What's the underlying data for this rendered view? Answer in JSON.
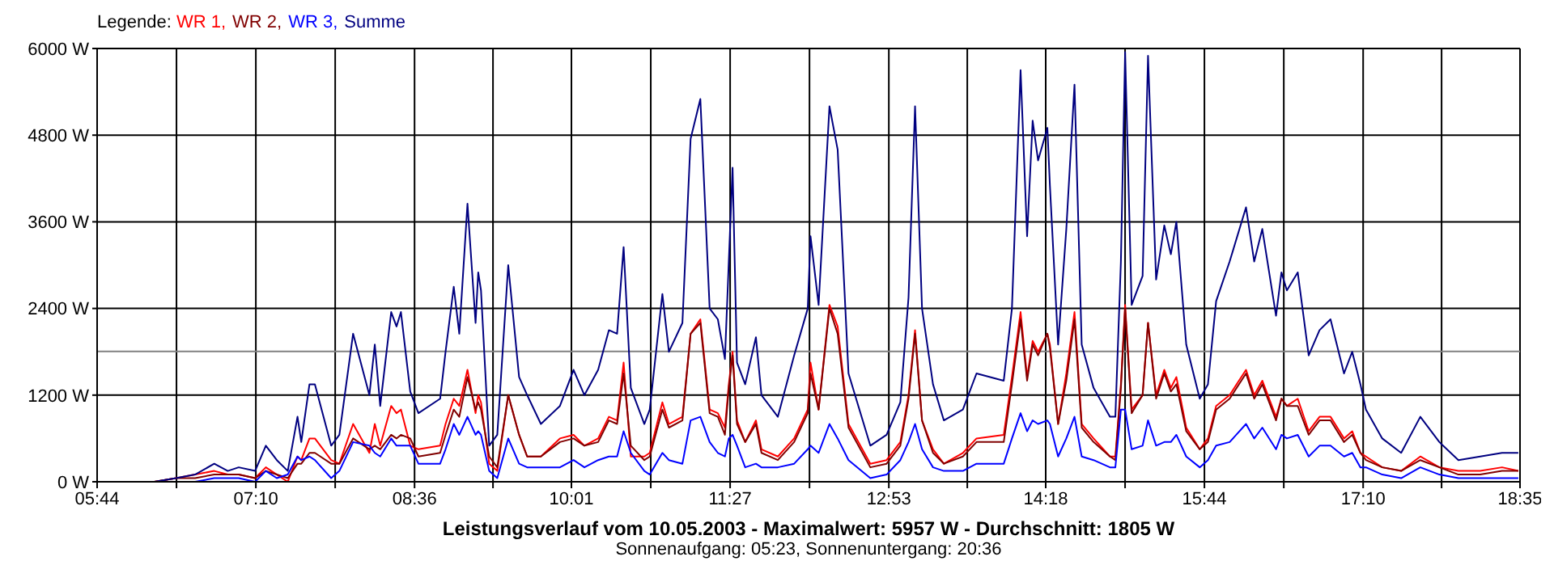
{
  "chart_data": {
    "type": "line",
    "title": "Leistungsverlauf vom 10.05.2003 - Maximalwert: 5957 W - Durchschnitt: 1805 W",
    "subtitle": "Sonnenaufgang: 05:23, Sonnenuntergang: 20:36",
    "legend_title": "Legende:",
    "legend": "top left",
    "grid": true,
    "x": [
      6.25,
      6.446,
      6.618,
      6.791,
      6.913,
      7.012,
      7.16,
      7.257,
      7.356,
      7.455,
      7.543,
      7.577,
      7.651,
      7.7,
      7.847,
      7.921,
      8.045,
      8.192,
      8.241,
      8.29,
      8.389,
      8.437,
      8.477,
      8.561,
      8.635,
      8.831,
      8.88,
      8.954,
      9.004,
      9.078,
      9.151,
      9.175,
      9.2,
      9.274,
      9.347,
      9.446,
      9.544,
      9.617,
      9.741,
      9.913,
      10.036,
      10.134,
      10.258,
      10.355,
      10.429,
      10.488,
      10.553,
      10.675,
      10.724,
      10.838,
      10.897,
      11.019,
      11.093,
      11.181,
      11.265,
      11.339,
      11.403,
      11.438,
      11.472,
      11.512,
      11.586,
      11.683,
      11.733,
      11.881,
      12.028,
      12.151,
      12.176,
      12.249,
      12.347,
      12.421,
      12.519,
      12.716,
      12.863,
      12.987,
      13.061,
      13.12,
      13.183,
      13.282,
      13.38,
      13.552,
      13.675,
      13.921,
      13.995,
      14.073,
      14.132,
      14.182,
      14.231,
      14.315,
      14.338,
      14.412,
      14.486,
      14.56,
      14.625,
      14.732,
      14.88,
      14.929,
      14.979,
      15.017,
      15.076,
      15.175,
      15.224,
      15.297,
      15.371,
      15.43,
      15.48,
      15.569,
      15.691,
      15.765,
      15.839,
      15.961,
      16.109,
      16.183,
      16.256,
      16.38,
      16.429,
      16.478,
      16.576,
      16.675,
      16.773,
      16.872,
      16.994,
      17.068,
      17.142,
      17.192,
      17.339,
      17.51,
      17.683,
      17.855,
      18.027,
      18.224,
      18.421,
      18.568
    ],
    "series": [
      {
        "name": "WR 1,",
        "color": "#ff0000",
        "values": [
          0,
          50,
          100,
          150,
          100,
          100,
          50,
          200,
          100,
          0,
          350,
          300,
          600,
          600,
          300,
          250,
          800,
          400,
          800,
          500,
          1050,
          950,
          1000,
          500,
          450,
          500,
          800,
          1150,
          1050,
          1550,
          950,
          1200,
          1100,
          250,
          150,
          1200,
          650,
          350,
          350,
          600,
          650,
          500,
          600,
          900,
          850,
          1650,
          350,
          350,
          400,
          1100,
          800,
          900,
          2050,
          2250,
          1000,
          950,
          750,
          1350,
          1800,
          850,
          550,
          850,
          450,
          350,
          600,
          1000,
          1650,
          1000,
          2450,
          2150,
          800,
          250,
          300,
          550,
          1200,
          2100,
          850,
          450,
          250,
          400,
          600,
          650,
          1450,
          2350,
          1450,
          1950,
          1800,
          2050,
          1900,
          800,
          1500,
          2350,
          800,
          600,
          350,
          350,
          1350,
          2450,
          1000,
          1200,
          2200,
          1200,
          1550,
          1300,
          1450,
          750,
          450,
          600,
          1050,
          1200,
          1550,
          1200,
          1400,
          900,
          1150,
          1050,
          1150,
          700,
          900,
          900,
          600,
          700,
          400,
          350,
          200,
          150,
          350,
          200,
          150,
          150,
          200,
          150
        ]
      },
      {
        "name": "WR 2,",
        "color": "#800000",
        "values": [
          0,
          50,
          50,
          100,
          100,
          100,
          50,
          150,
          100,
          50,
          250,
          250,
          400,
          400,
          250,
          250,
          600,
          450,
          500,
          450,
          650,
          600,
          650,
          600,
          350,
          400,
          650,
          1000,
          900,
          1450,
          1000,
          1100,
          1000,
          350,
          200,
          1200,
          650,
          350,
          350,
          550,
          600,
          500,
          550,
          850,
          800,
          1500,
          500,
          300,
          350,
          1000,
          750,
          850,
          2050,
          2200,
          950,
          900,
          650,
          1300,
          1750,
          800,
          550,
          800,
          400,
          300,
          550,
          950,
          1500,
          1000,
          2400,
          2050,
          750,
          200,
          250,
          500,
          1150,
          2050,
          850,
          400,
          250,
          350,
          550,
          550,
          1350,
          2250,
          1400,
          1900,
          1750,
          2050,
          1850,
          800,
          1400,
          2250,
          750,
          550,
          350,
          300,
          1300,
          2400,
          950,
          1200,
          2200,
          1150,
          1500,
          1250,
          1350,
          700,
          450,
          550,
          1000,
          1150,
          1500,
          1150,
          1350,
          850,
          1150,
          1050,
          1050,
          650,
          850,
          850,
          550,
          650,
          400,
          300,
          200,
          150,
          300,
          200,
          100,
          100,
          150,
          150
        ]
      },
      {
        "name": "WR 3,",
        "color": "#0000ff",
        "values": [
          0,
          0,
          0,
          50,
          50,
          50,
          0,
          150,
          50,
          100,
          350,
          300,
          350,
          300,
          50,
          150,
          550,
          500,
          400,
          350,
          600,
          500,
          500,
          500,
          250,
          250,
          450,
          800,
          650,
          900,
          650,
          700,
          650,
          150,
          50,
          600,
          250,
          200,
          200,
          200,
          300,
          200,
          300,
          350,
          350,
          700,
          400,
          150,
          100,
          400,
          300,
          250,
          850,
          900,
          550,
          400,
          350,
          600,
          650,
          500,
          200,
          250,
          200,
          200,
          250,
          450,
          500,
          400,
          800,
          600,
          300,
          50,
          100,
          300,
          550,
          800,
          450,
          200,
          150,
          150,
          250,
          250,
          600,
          950,
          700,
          850,
          800,
          850,
          800,
          350,
          600,
          900,
          350,
          300,
          200,
          200,
          1000,
          1000,
          450,
          500,
          850,
          500,
          550,
          550,
          650,
          350,
          200,
          300,
          500,
          550,
          800,
          600,
          750,
          450,
          650,
          600,
          650,
          350,
          500,
          500,
          350,
          400,
          200,
          200,
          100,
          50,
          200,
          100,
          50,
          50,
          50,
          50
        ]
      },
      {
        "name": "Summe",
        "color": "#000080",
        "values": [
          0,
          50,
          100,
          250,
          150,
          200,
          150,
          500,
          300,
          150,
          900,
          550,
          1350,
          1350,
          500,
          650,
          2050,
          1200,
          1900,
          1050,
          2350,
          2150,
          2350,
          1250,
          950,
          1150,
          1800,
          2700,
          2050,
          3850,
          2200,
          2900,
          2650,
          500,
          650,
          3000,
          1450,
          1200,
          800,
          1050,
          1550,
          1200,
          1550,
          2100,
          2050,
          3250,
          1300,
          800,
          1000,
          2600,
          1800,
          2200,
          4750,
          5300,
          2400,
          2250,
          1700,
          3050,
          4350,
          1650,
          1350,
          2000,
          1200,
          900,
          1750,
          2400,
          3400,
          2450,
          5200,
          4600,
          1500,
          500,
          650,
          1100,
          2550,
          5200,
          2400,
          1350,
          850,
          1000,
          1500,
          1400,
          2400,
          5700,
          3400,
          5000,
          4450,
          4900,
          4100,
          1900,
          3500,
          5500,
          1900,
          1300,
          900,
          900,
          3050,
          5950,
          2450,
          2850,
          5900,
          2800,
          3550,
          3150,
          3600,
          1900,
          1150,
          1350,
          2500,
          3050,
          3800,
          3050,
          3500,
          2300,
          2900,
          2650,
          2900,
          1750,
          2100,
          2250,
          1500,
          1800,
          1350,
          1000,
          600,
          400,
          900,
          550,
          300,
          350,
          400,
          400
        ]
      }
    ],
    "xlim": [
      5.7333,
      18.5833
    ],
    "xticks": [
      {
        "value": 5.7333,
        "label": "05:44"
      },
      {
        "value": 6.45,
        "label": null
      },
      {
        "value": 7.1667,
        "label": "07:10"
      },
      {
        "value": 7.8833,
        "label": null
      },
      {
        "value": 8.6,
        "label": "08:36"
      },
      {
        "value": 9.3083,
        "label": null
      },
      {
        "value": 10.0167,
        "label": "10:01"
      },
      {
        "value": 10.7333,
        "label": null
      },
      {
        "value": 11.45,
        "label": "11:27"
      },
      {
        "value": 12.1667,
        "label": null
      },
      {
        "value": 12.8833,
        "label": "12:53"
      },
      {
        "value": 13.5917,
        "label": null
      },
      {
        "value": 14.3,
        "label": "14:18"
      },
      {
        "value": 15.0167,
        "label": null
      },
      {
        "value": 15.7333,
        "label": "15:44"
      },
      {
        "value": 16.45,
        "label": null
      },
      {
        "value": 17.1667,
        "label": "17:10"
      },
      {
        "value": 17.875,
        "label": null
      },
      {
        "value": 18.5833,
        "label": "18:35"
      }
    ],
    "ylim": [
      0,
      6000
    ],
    "yticks": [
      {
        "value": 0,
        "label": "0 W"
      },
      {
        "value": 1200,
        "label": "1200 W"
      },
      {
        "value": 2400,
        "label": "2400 W"
      },
      {
        "value": 3600,
        "label": "3600 W"
      },
      {
        "value": 4800,
        "label": "4800 W"
      },
      {
        "value": 6000,
        "label": "6000 W"
      }
    ],
    "ref_lines": [
      {
        "axis": "y",
        "value": 1805,
        "color": "#808080"
      }
    ]
  }
}
